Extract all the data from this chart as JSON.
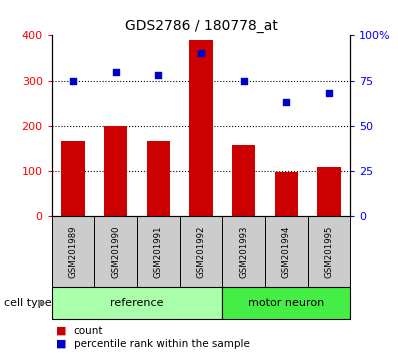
{
  "title": "GDS2786 / 180778_at",
  "samples": [
    "GSM201989",
    "GSM201990",
    "GSM201991",
    "GSM201992",
    "GSM201993",
    "GSM201994",
    "GSM201995"
  ],
  "counts": [
    165,
    200,
    165,
    390,
    158,
    97,
    108
  ],
  "percentile_ranks": [
    75,
    80,
    78,
    90,
    75,
    63,
    68
  ],
  "n_reference": 4,
  "n_motor": 3,
  "bar_color": "#cc0000",
  "scatter_color": "#0000cc",
  "ref_bg": "#aaffaa",
  "motor_bg": "#44ee44",
  "sample_bg": "#cccccc",
  "left_ylim": [
    0,
    400
  ],
  "right_ylim": [
    0,
    100
  ],
  "left_yticks": [
    0,
    100,
    200,
    300,
    400
  ],
  "right_yticks": [
    0,
    25,
    50,
    75,
    100
  ],
  "right_yticklabels": [
    "0",
    "25",
    "50",
    "75",
    "100%"
  ],
  "grid_vals": [
    100,
    200,
    300
  ],
  "legend_count_label": "count",
  "legend_pct_label": "percentile rank within the sample",
  "cell_type_label": "cell type",
  "ref_label": "reference",
  "motor_label": "motor neuron"
}
